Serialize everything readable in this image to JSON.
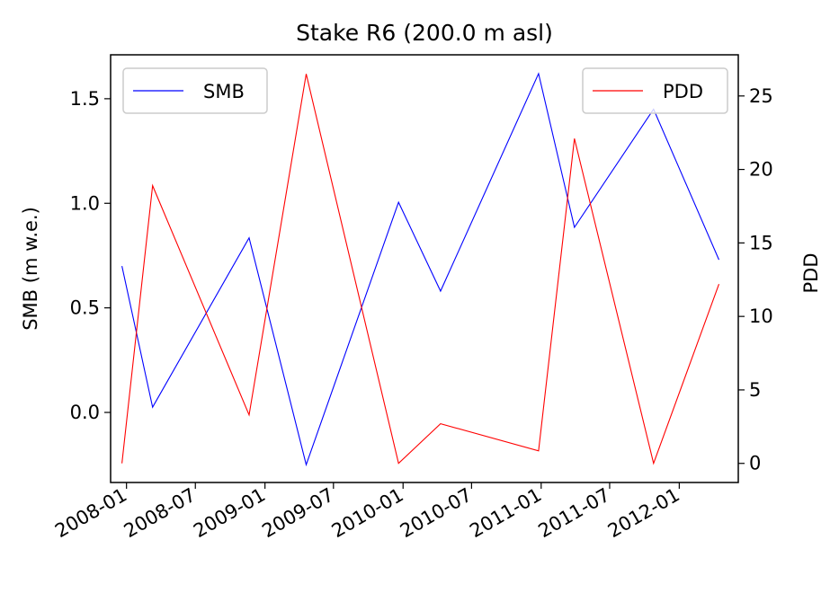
{
  "chart_data": {
    "type": "line",
    "title": "Stake R6 (200.0 m asl)",
    "xlabel": "",
    "ylabel_left": "SMB (m w.e.)",
    "ylabel_right": "PDD",
    "x_ticks": [
      "2008-01",
      "2008-07",
      "2009-01",
      "2009-07",
      "2010-01",
      "2010-07",
      "2011-01",
      "2011-07",
      "2012-01"
    ],
    "y_left_ticks": [
      0.0,
      0.5,
      1.0,
      1.5
    ],
    "y_left_tick_labels": [
      "0.0",
      "0.5",
      "1.0",
      "1.5"
    ],
    "y_right_ticks": [
      0,
      5,
      10,
      15,
      20,
      25
    ],
    "y_right_tick_labels": [
      "0",
      "5",
      "10",
      "15",
      "20",
      "25"
    ],
    "xlim": [
      "2007-11-20",
      "2012-06-05"
    ],
    "ylim_left": [
      -0.335,
      1.71
    ],
    "ylim_right": [
      -1.3,
      27.8
    ],
    "grid": false,
    "series": [
      {
        "name": "SMB",
        "axis": "left",
        "color": "#0000ff",
        "legend_position": "upper-left",
        "points": [
          {
            "date": "2007-12-20",
            "value": 0.7
          },
          {
            "date": "2008-03-10",
            "value": 0.025
          },
          {
            "date": "2008-11-20",
            "value": 0.835
          },
          {
            "date": "2009-04-20",
            "value": -0.25
          },
          {
            "date": "2009-12-20",
            "value": 1.005
          },
          {
            "date": "2010-04-10",
            "value": 0.58
          },
          {
            "date": "2010-12-25",
            "value": 1.62
          },
          {
            "date": "2011-03-30",
            "value": 0.885
          },
          {
            "date": "2011-10-25",
            "value": 1.45
          },
          {
            "date": "2012-04-15",
            "value": 0.73
          }
        ]
      },
      {
        "name": "PDD",
        "axis": "right",
        "color": "#ff0000",
        "legend_position": "upper-right",
        "points": [
          {
            "date": "2007-12-20",
            "value": 0.0
          },
          {
            "date": "2008-03-10",
            "value": 18.9
          },
          {
            "date": "2008-11-20",
            "value": 3.3
          },
          {
            "date": "2009-04-20",
            "value": 26.5
          },
          {
            "date": "2009-12-20",
            "value": 0.0
          },
          {
            "date": "2010-04-10",
            "value": 2.7
          },
          {
            "date": "2010-12-25",
            "value": 0.85
          },
          {
            "date": "2011-03-30",
            "value": 22.1
          },
          {
            "date": "2011-10-25",
            "value": 0.0
          },
          {
            "date": "2012-04-15",
            "value": 12.2
          }
        ]
      }
    ]
  }
}
